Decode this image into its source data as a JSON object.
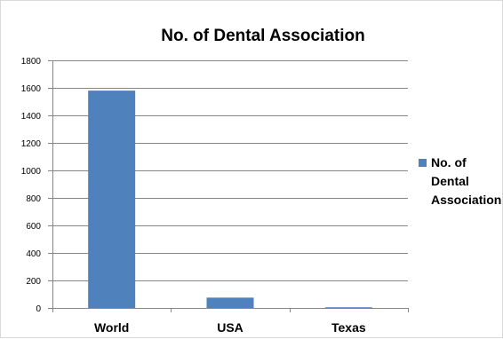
{
  "chart_data": {
    "type": "bar",
    "title": "No. of Dental Association",
    "xlabel": "",
    "ylabel": "",
    "categories": [
      "World",
      "USA",
      "Texas"
    ],
    "series": [
      {
        "name": "No. of Dental Association",
        "values": [
          1580,
          75,
          5
        ],
        "color": "#4f81bd"
      }
    ],
    "ylim": [
      0,
      1800
    ],
    "yticks": [
      0,
      200,
      400,
      600,
      800,
      1000,
      1200,
      1400,
      1600,
      1800
    ],
    "grid": true,
    "legend": {
      "position": "right",
      "lines": [
        "No. of",
        "Dental",
        "Association"
      ]
    }
  }
}
